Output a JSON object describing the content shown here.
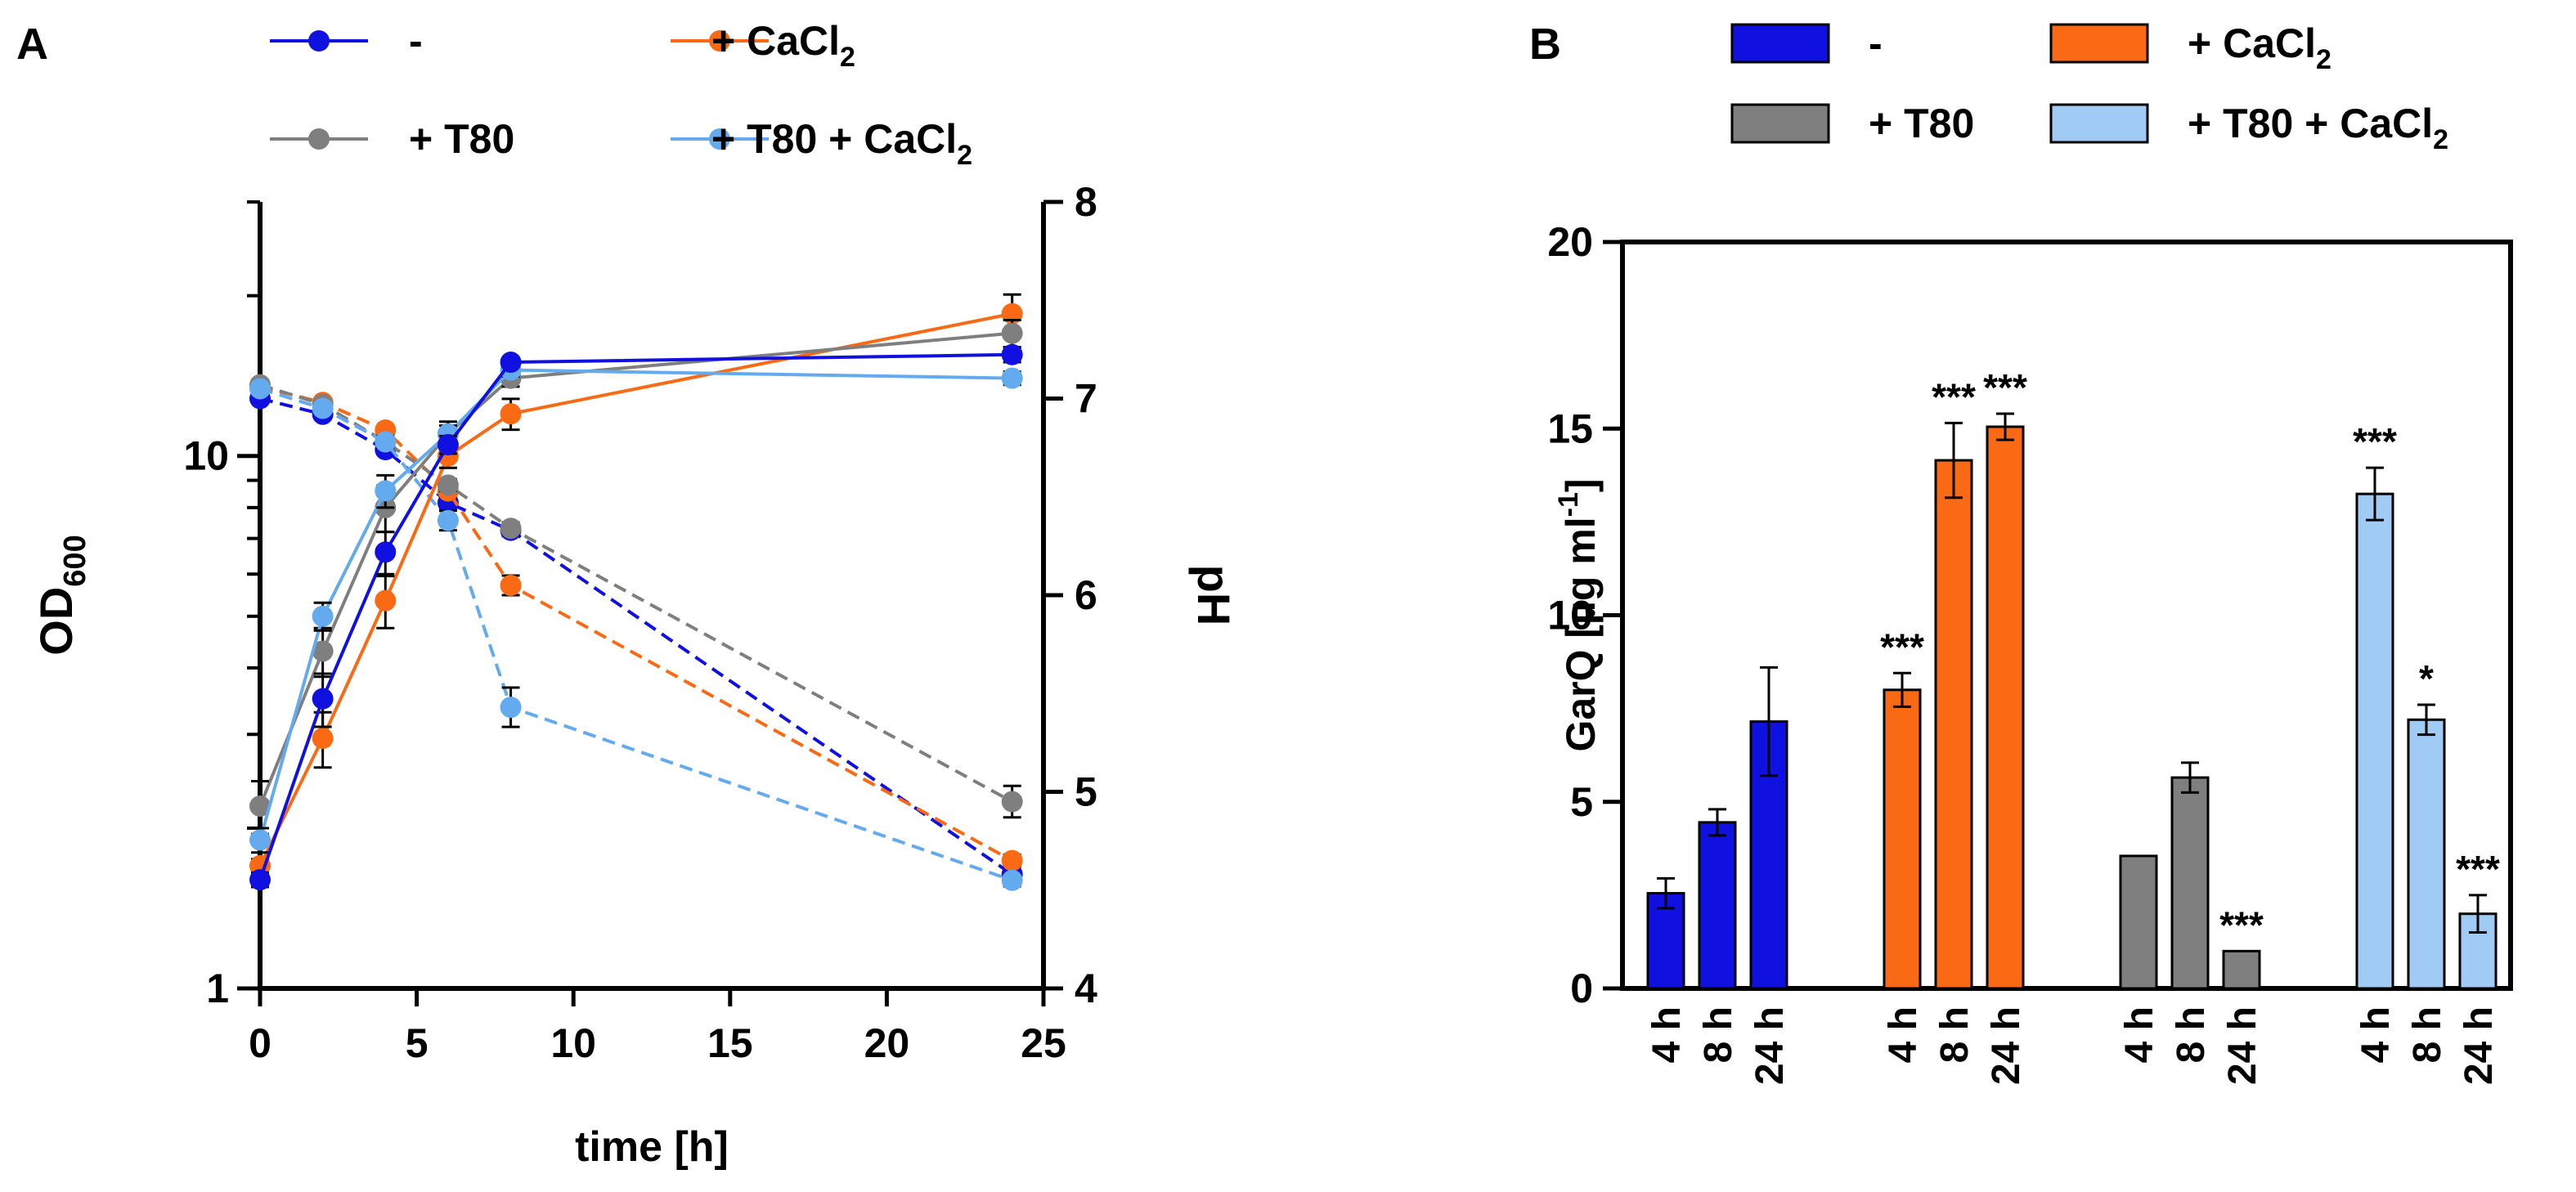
{
  "figure": {
    "panel_a_letter": "A",
    "panel_b_letter": "B"
  },
  "chart_data": [
    {
      "type": "line",
      "panel": "A",
      "xlabel": "time [h]",
      "ylabel": "OD",
      "ylabel_sub": "600",
      "y2label": "pH",
      "xlim": [
        0,
        25
      ],
      "xticks": [
        "0",
        "5",
        "10",
        "15",
        "20",
        "25"
      ],
      "ylim": [
        1,
        30
      ],
      "yscale": "log",
      "yticks": [
        "1",
        "10"
      ],
      "y2lim": [
        4,
        8
      ],
      "y2ticks": [
        "4",
        "5",
        "6",
        "7",
        "8"
      ],
      "legend": [
        {
          "name": "-",
          "sub": "",
          "color": "#1010e0"
        },
        {
          "name": "+ CaCl",
          "sub": "2",
          "color": "#fa6a14"
        },
        {
          "name": "+ T80",
          "sub": "",
          "color": "#7f7f7f"
        },
        {
          "name": "+ T80 + CaCl",
          "sub": "2",
          "color": "#63aaee"
        }
      ],
      "series": [
        {
          "name": "OD600 -",
          "axis": "left",
          "style": "solid",
          "color": "#1010e0",
          "x": [
            0,
            2,
            4,
            6,
            8,
            24
          ],
          "y": [
            1.6,
            3.5,
            6.6,
            10.5,
            15.0,
            15.5
          ],
          "err": [
            0.05,
            0.4,
            0.6,
            0.4,
            0.3,
            0.5
          ]
        },
        {
          "name": "OD600 + CaCl2",
          "axis": "left",
          "style": "solid",
          "color": "#fa6a14",
          "x": [
            0,
            2,
            4,
            6,
            8,
            24
          ],
          "y": [
            1.7,
            2.95,
            5.35,
            10.0,
            12.0,
            18.5
          ],
          "err": [
            0.05,
            0.35,
            0.6,
            0.5,
            0.8,
            1.6
          ]
        },
        {
          "name": "OD600 + T80",
          "axis": "left",
          "style": "solid",
          "color": "#7f7f7f",
          "x": [
            0,
            2,
            4,
            6,
            8,
            24
          ],
          "y": [
            2.2,
            4.3,
            8.0,
            11.0,
            14.0,
            17.0
          ],
          "err": [
            0.25,
            0.45,
            0.8,
            0.6,
            0.5,
            1.0
          ]
        },
        {
          "name": "OD600 + T80 + CaCl2",
          "axis": "left",
          "style": "solid",
          "color": "#63aaee",
          "x": [
            0,
            2,
            4,
            6,
            8,
            24
          ],
          "y": [
            1.9,
            5.0,
            8.6,
            11.0,
            14.5,
            14.0
          ],
          "err": [
            0.1,
            0.3,
            0.6,
            0.4,
            0.4,
            0.4
          ]
        },
        {
          "name": "pH -",
          "axis": "right",
          "style": "dashed",
          "color": "#1010e0",
          "x": [
            0,
            2,
            4,
            6,
            8,
            24
          ],
          "y": [
            7.0,
            6.92,
            6.74,
            6.47,
            6.33,
            4.58
          ],
          "err": [
            0.02,
            0.02,
            0.02,
            0.03,
            0.03,
            0.04
          ]
        },
        {
          "name": "pH + CaCl2",
          "axis": "right",
          "style": "dashed",
          "color": "#fa6a14",
          "x": [
            0,
            2,
            4,
            6,
            8,
            24
          ],
          "y": [
            7.06,
            6.98,
            6.84,
            6.53,
            6.05,
            4.65
          ],
          "err": [
            0.02,
            0.02,
            0.02,
            0.03,
            0.05,
            0.03
          ]
        },
        {
          "name": "pH + T80",
          "axis": "right",
          "style": "dashed",
          "color": "#7f7f7f",
          "x": [
            0,
            2,
            4,
            6,
            8,
            24
          ],
          "y": [
            7.07,
            6.97,
            6.78,
            6.56,
            6.34,
            4.95
          ],
          "err": [
            0.02,
            0.02,
            0.02,
            0.03,
            0.03,
            0.08
          ]
        },
        {
          "name": "pH + T80 + CaCl2",
          "axis": "right",
          "style": "dashed",
          "color": "#63aaee",
          "x": [
            0,
            2,
            4,
            6,
            8,
            24
          ],
          "y": [
            7.05,
            6.95,
            6.78,
            6.38,
            5.43,
            4.55
          ],
          "err": [
            0.02,
            0.02,
            0.03,
            0.05,
            0.1,
            0.03
          ]
        }
      ]
    },
    {
      "type": "bar",
      "panel": "B",
      "ylabel": "GarQ [µg ml",
      "ylabel_sup": "-1",
      "ylabel_end": "]",
      "ylim": [
        0,
        20
      ],
      "yticks": [
        "0",
        "5",
        "10",
        "15",
        "20"
      ],
      "legend": [
        {
          "name": "-",
          "sub": "",
          "color": "#1010e0"
        },
        {
          "name": "+ CaCl",
          "sub": "2",
          "color": "#fa6a14"
        },
        {
          "name": "+ T80",
          "sub": "",
          "color": "#7f7f7f"
        },
        {
          "name": "+ T80 + CaCl",
          "sub": "2",
          "color": "#9fcbf4"
        }
      ],
      "groups": [
        {
          "name": "-",
          "color": "#1010e0",
          "categories": [
            "4 h",
            "8 h",
            "24 h"
          ],
          "values": [
            2.55,
            4.45,
            7.15
          ],
          "err": [
            0.4,
            0.35,
            1.45
          ],
          "annotations": [
            "",
            "",
            ""
          ]
        },
        {
          "name": "+ CaCl2",
          "color": "#fa6a14",
          "categories": [
            "4 h",
            "8 h",
            "24 h"
          ],
          "values": [
            8.0,
            14.15,
            15.05
          ],
          "err": [
            0.45,
            1.0,
            0.35
          ],
          "annotations": [
            "***",
            "***",
            "***"
          ]
        },
        {
          "name": "+ T80",
          "color": "#7f7f7f",
          "categories": [
            "4 h",
            "8 h",
            "24 h"
          ],
          "values": [
            3.55,
            5.65,
            1.0
          ],
          "err": [
            0.0,
            0.4,
            0.0
          ],
          "annotations": [
            "",
            "",
            "***"
          ]
        },
        {
          "name": "+ T80 + CaCl2",
          "color": "#9fcbf4",
          "categories": [
            "4 h",
            "8 h",
            "24 h"
          ],
          "values": [
            13.25,
            7.2,
            2.0
          ],
          "err": [
            0.7,
            0.4,
            0.5
          ],
          "annotations": [
            "***",
            "*",
            "***"
          ]
        }
      ]
    }
  ]
}
